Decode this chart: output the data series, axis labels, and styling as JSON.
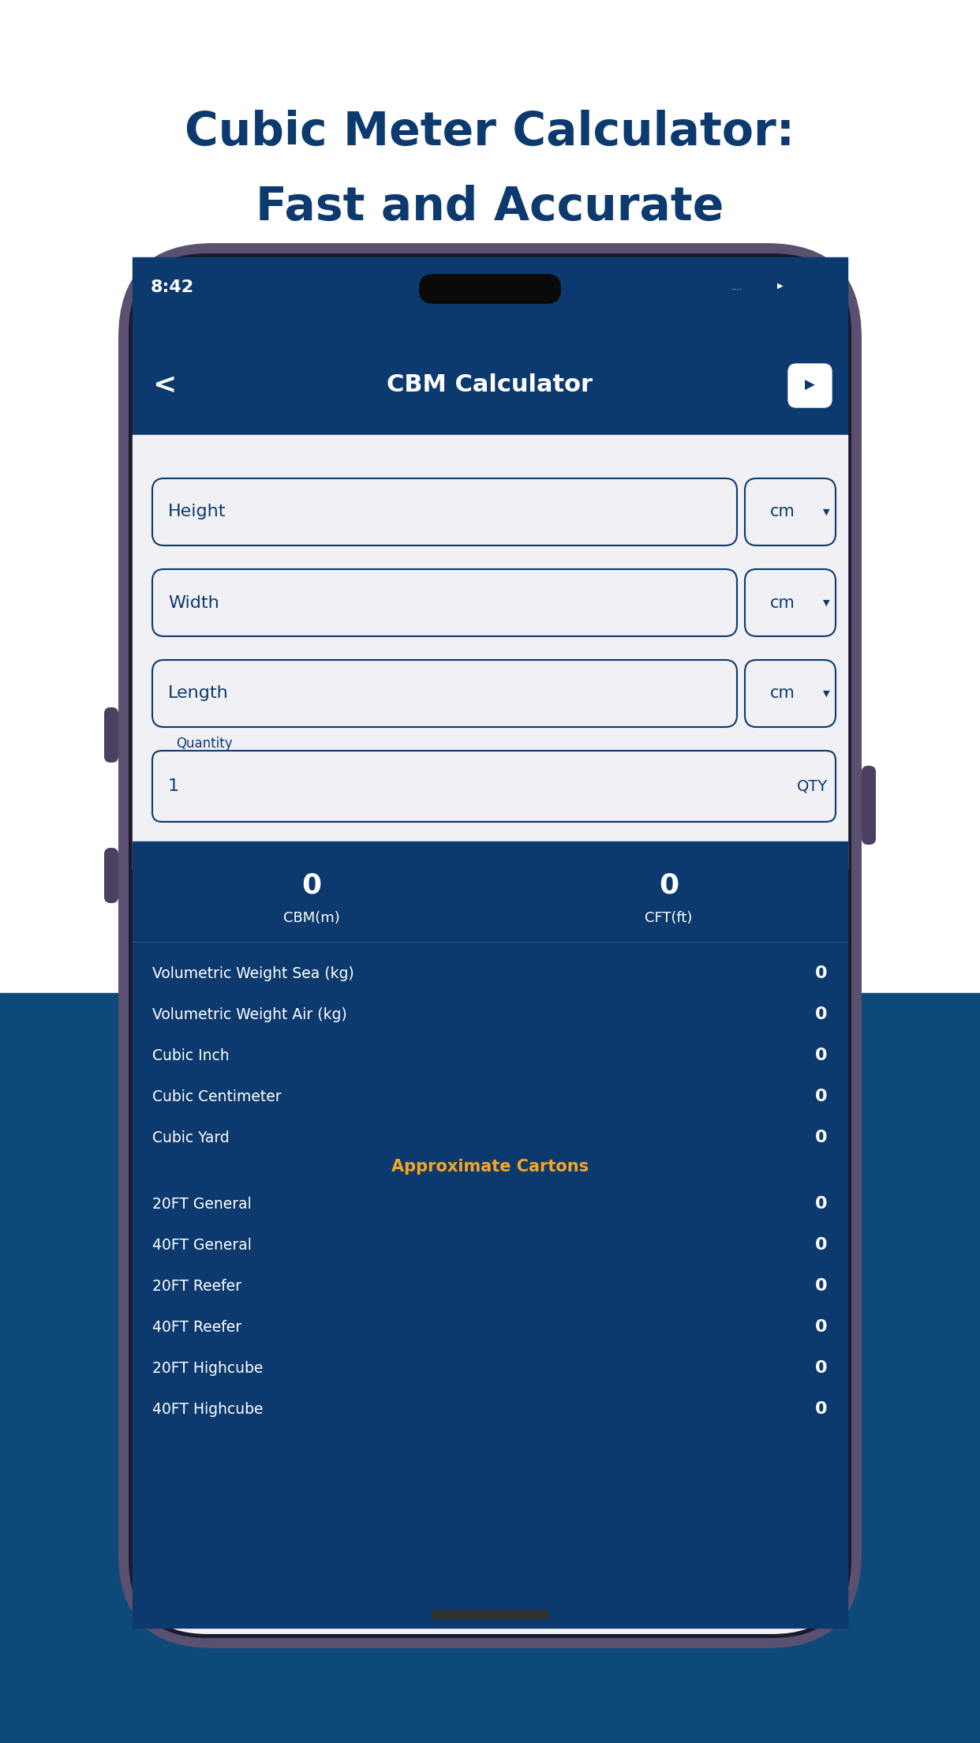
{
  "title_line1": "Cubic Meter Calculator:",
  "title_line2": "Fast and Accurate",
  "title_color": "#0d3a6e",
  "bg_top_color": "#ffffff",
  "bg_bottom_color": "#0d4a7a",
  "phone_outer_color": "#5a5070",
  "phone_screen_bg": "#f0f0f5",
  "status_bar_time": "8:42",
  "nav_title": "CBM Calculator",
  "input_fields": [
    "Height",
    "Width",
    "Length"
  ],
  "input_unit": "cm",
  "quantity_value": "1",
  "quantity_unit": "QTY",
  "cbm_value": "0",
  "cft_value": "0",
  "cbm_label": "CBM(m)",
  "cft_label": "CFT(ft)",
  "result_rows": [
    [
      "Volumetric Weight Sea (kg)",
      "0"
    ],
    [
      "Volumetric Weight Air (kg)",
      "0"
    ],
    [
      "Cubic Inch",
      "0"
    ],
    [
      "Cubic Centimeter",
      "0"
    ],
    [
      "Cubic Yard",
      "0"
    ]
  ],
  "approx_title": "Approximate Cartons",
  "approx_rows": [
    [
      "20FT General",
      "0"
    ],
    [
      "40FT General",
      "0"
    ],
    [
      "20FT Reefer",
      "0"
    ],
    [
      "40FT Reefer",
      "0"
    ],
    [
      "20FT Highcube",
      "0"
    ],
    [
      "40FT Highcube",
      "0"
    ]
  ],
  "dark_panel_color": "#0d3a6e",
  "gold_text": "#f5a623",
  "label_text_color": "#0d3a6e"
}
